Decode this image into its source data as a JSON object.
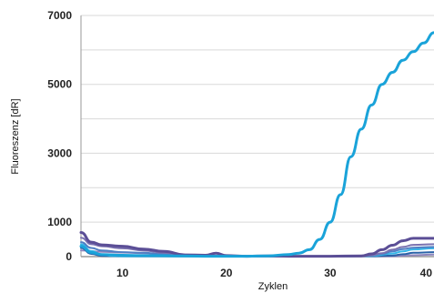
{
  "chart_data": {
    "type": "line",
    "title": "",
    "xlabel": "Zyklen",
    "ylabel": "Fluoreszenz [dR]",
    "xlim": [
      6,
      40
    ],
    "ylim": [
      0,
      7000
    ],
    "x_ticks": [
      10,
      20,
      30,
      40
    ],
    "x_tick_labels": [
      "10",
      "20",
      "30",
      "40"
    ],
    "y_ticks": [
      0,
      1000,
      3000,
      5000,
      7000
    ],
    "y_tick_labels": [
      "0",
      "1000",
      "3000",
      "5000",
      "7000"
    ],
    "y_gridlines": [
      0,
      1000,
      2000,
      3000,
      4000,
      5000,
      6000,
      7000
    ],
    "grid": true,
    "legend": "none",
    "series": [
      {
        "color": "#1aa3d9",
        "width": 3,
        "points": [
          [
            6,
            300
          ],
          [
            7,
            120
          ],
          [
            8,
            60
          ],
          [
            10,
            40
          ],
          [
            12,
            30
          ],
          [
            15,
            20
          ],
          [
            18,
            10
          ],
          [
            20,
            10
          ],
          [
            22,
            10
          ],
          [
            24,
            20
          ],
          [
            26,
            60
          ],
          [
            27,
            100
          ],
          [
            28,
            200
          ],
          [
            29,
            500
          ],
          [
            30,
            1000
          ],
          [
            31,
            1800
          ],
          [
            32,
            2900
          ],
          [
            33,
            3700
          ],
          [
            34,
            4400
          ],
          [
            35,
            5000
          ],
          [
            36,
            5350
          ],
          [
            37,
            5700
          ],
          [
            38,
            5950
          ],
          [
            39,
            6200
          ],
          [
            40,
            6500
          ]
        ]
      },
      {
        "color": "#5b4e96",
        "width": 3,
        "points": [
          [
            6,
            700
          ],
          [
            7,
            420
          ],
          [
            8,
            340
          ],
          [
            10,
            300
          ],
          [
            12,
            220
          ],
          [
            14,
            150
          ],
          [
            16,
            50
          ],
          [
            18,
            40
          ],
          [
            19,
            100
          ],
          [
            20,
            30
          ],
          [
            22,
            10
          ],
          [
            24,
            20
          ],
          [
            26,
            10
          ],
          [
            28,
            10
          ],
          [
            30,
            10
          ],
          [
            33,
            20
          ],
          [
            34,
            80
          ],
          [
            35,
            200
          ],
          [
            36,
            330
          ],
          [
            37,
            460
          ],
          [
            38,
            530
          ],
          [
            40,
            530
          ]
        ]
      },
      {
        "color": "#7a72b0",
        "width": 2,
        "points": [
          [
            6,
            550
          ],
          [
            7,
            360
          ],
          [
            8,
            300
          ],
          [
            10,
            240
          ],
          [
            12,
            180
          ],
          [
            14,
            110
          ],
          [
            16,
            40
          ],
          [
            18,
            30
          ],
          [
            20,
            20
          ],
          [
            22,
            10
          ],
          [
            24,
            10
          ],
          [
            26,
            10
          ],
          [
            28,
            10
          ],
          [
            30,
            10
          ],
          [
            33,
            10
          ],
          [
            34,
            40
          ],
          [
            35,
            100
          ],
          [
            36,
            200
          ],
          [
            37,
            280
          ],
          [
            38,
            340
          ],
          [
            40,
            360
          ]
        ]
      },
      {
        "color": "#4f7fc4",
        "width": 2,
        "points": [
          [
            6,
            420
          ],
          [
            7,
            250
          ],
          [
            8,
            180
          ],
          [
            10,
            130
          ],
          [
            12,
            110
          ],
          [
            14,
            70
          ],
          [
            16,
            30
          ],
          [
            18,
            20
          ],
          [
            20,
            20
          ],
          [
            24,
            10
          ],
          [
            28,
            10
          ],
          [
            32,
            10
          ],
          [
            34,
            30
          ],
          [
            35,
            80
          ],
          [
            36,
            150
          ],
          [
            37,
            220
          ],
          [
            38,
            260
          ],
          [
            40,
            280
          ]
        ]
      },
      {
        "color": "#35b7e8",
        "width": 2,
        "points": [
          [
            6,
            360
          ],
          [
            7,
            160
          ],
          [
            8,
            60
          ],
          [
            9,
            20
          ],
          [
            10,
            10
          ],
          [
            12,
            10
          ],
          [
            16,
            10
          ],
          [
            20,
            10
          ],
          [
            24,
            10
          ],
          [
            28,
            10
          ],
          [
            32,
            10
          ],
          [
            34,
            20
          ],
          [
            36,
            90
          ],
          [
            37,
            150
          ],
          [
            38,
            210
          ],
          [
            40,
            240
          ]
        ]
      },
      {
        "color": "#2a63a8",
        "width": 2,
        "points": [
          [
            6,
            250
          ],
          [
            7,
            80
          ],
          [
            8,
            20
          ],
          [
            10,
            10
          ],
          [
            14,
            10
          ],
          [
            18,
            10
          ],
          [
            22,
            10
          ],
          [
            26,
            10
          ],
          [
            30,
            10
          ],
          [
            34,
            10
          ],
          [
            36,
            30
          ],
          [
            37,
            70
          ],
          [
            38,
            110
          ],
          [
            40,
            130
          ]
        ]
      },
      {
        "color": "#8e86bd",
        "width": 2,
        "points": [
          [
            6,
            180
          ],
          [
            8,
            140
          ],
          [
            10,
            120
          ],
          [
            12,
            100
          ],
          [
            14,
            60
          ],
          [
            16,
            20
          ],
          [
            20,
            10
          ],
          [
            24,
            10
          ],
          [
            28,
            10
          ],
          [
            32,
            10
          ],
          [
            36,
            10
          ],
          [
            38,
            40
          ],
          [
            40,
            60
          ]
        ]
      }
    ]
  }
}
